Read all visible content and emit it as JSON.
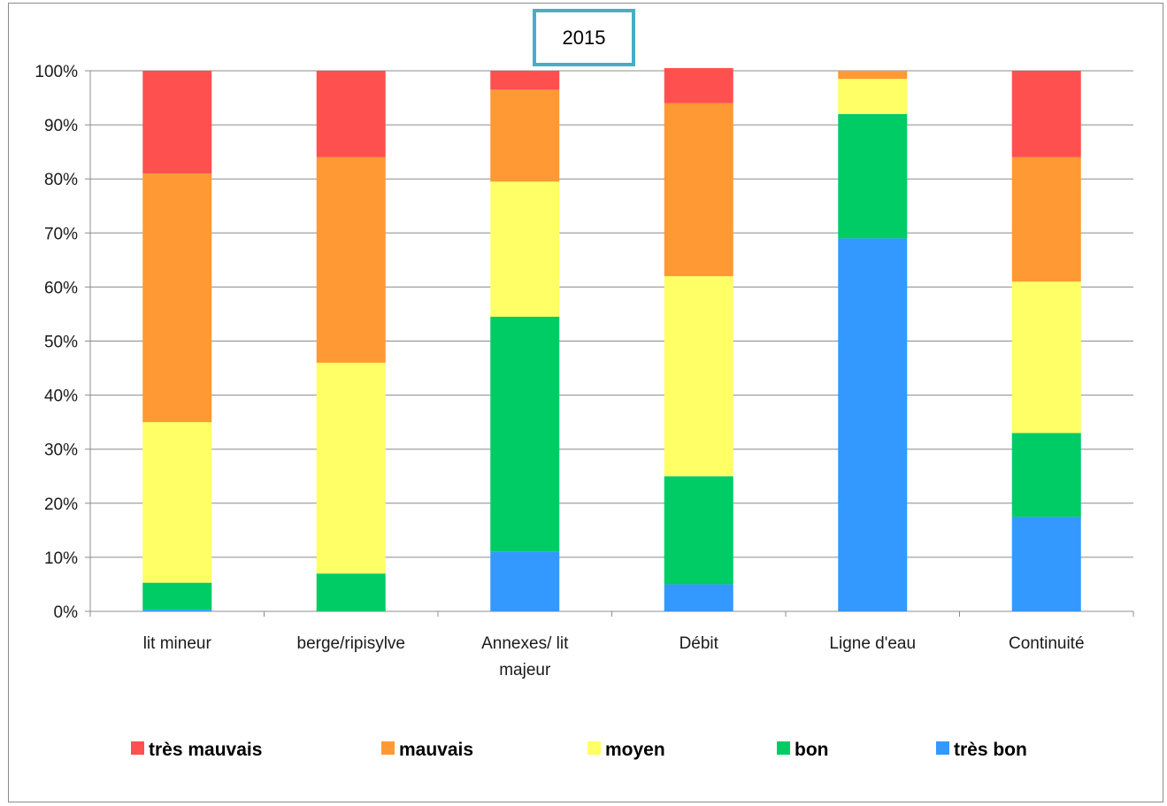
{
  "chart_data": {
    "type": "bar",
    "stacked": true,
    "percent": true,
    "title": "2015",
    "xlabel": "",
    "ylabel": "",
    "ylim": [
      0,
      100
    ],
    "yticks": [
      "0%",
      "10%",
      "20%",
      "30%",
      "40%",
      "50%",
      "60%",
      "70%",
      "80%",
      "90%",
      "100%"
    ],
    "grid": true,
    "legend_position": "bottom",
    "categories": [
      [
        "lit mineur"
      ],
      [
        "berge/ripisylve"
      ],
      [
        "Annexes/ lit",
        "majeur"
      ],
      [
        "Débit"
      ],
      [
        "Ligne d'eau"
      ],
      [
        "Continuité"
      ]
    ],
    "series": [
      {
        "name": "très bon",
        "color": "#3399ff",
        "values": [
          0.3,
          0,
          11,
          5,
          69,
          17.5
        ]
      },
      {
        "name": "bon",
        "color": "#00cc66",
        "values": [
          5,
          7,
          43.5,
          20,
          23,
          15.5
        ]
      },
      {
        "name": "moyen",
        "color": "#ffff66",
        "values": [
          29.7,
          39,
          25,
          37,
          6.5,
          28
        ]
      },
      {
        "name": "mauvais",
        "color": "#ff9933",
        "values": [
          46,
          38,
          17,
          32,
          1.5,
          23
        ]
      },
      {
        "name": "très mauvais",
        "color": "#ff5050",
        "values": [
          19,
          16,
          3.5,
          6.5,
          0,
          16
        ]
      }
    ],
    "legend_order": [
      "très mauvais",
      "mauvais",
      "moyen",
      "bon",
      "très bon"
    ],
    "title_box_color": "#4bacc6"
  }
}
